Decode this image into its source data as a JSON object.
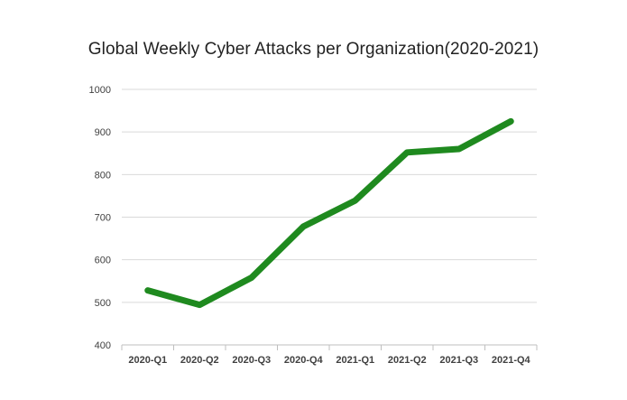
{
  "chart_data": {
    "type": "line",
    "title": "Global Weekly Cyber Attacks per Organization(2020-2021)",
    "xlabel": "",
    "ylabel": "",
    "categories": [
      "2020-Q1",
      "2020-Q2",
      "2020-Q3",
      "2020-Q4",
      "2021-Q1",
      "2021-Q2",
      "2021-Q3",
      "2021-Q4"
    ],
    "series": [
      {
        "values": [
          528,
          494,
          558,
          678,
          739,
          852,
          860,
          925
        ]
      }
    ],
    "ylim": [
      400,
      1000
    ],
    "yticks": [
      400,
      500,
      600,
      700,
      800,
      900,
      1000
    ],
    "grid": true,
    "legend": "none",
    "colors": {
      "line": "#1f8a1f",
      "grid": "#d9d9d9",
      "axis": "#bfbfbf"
    }
  }
}
